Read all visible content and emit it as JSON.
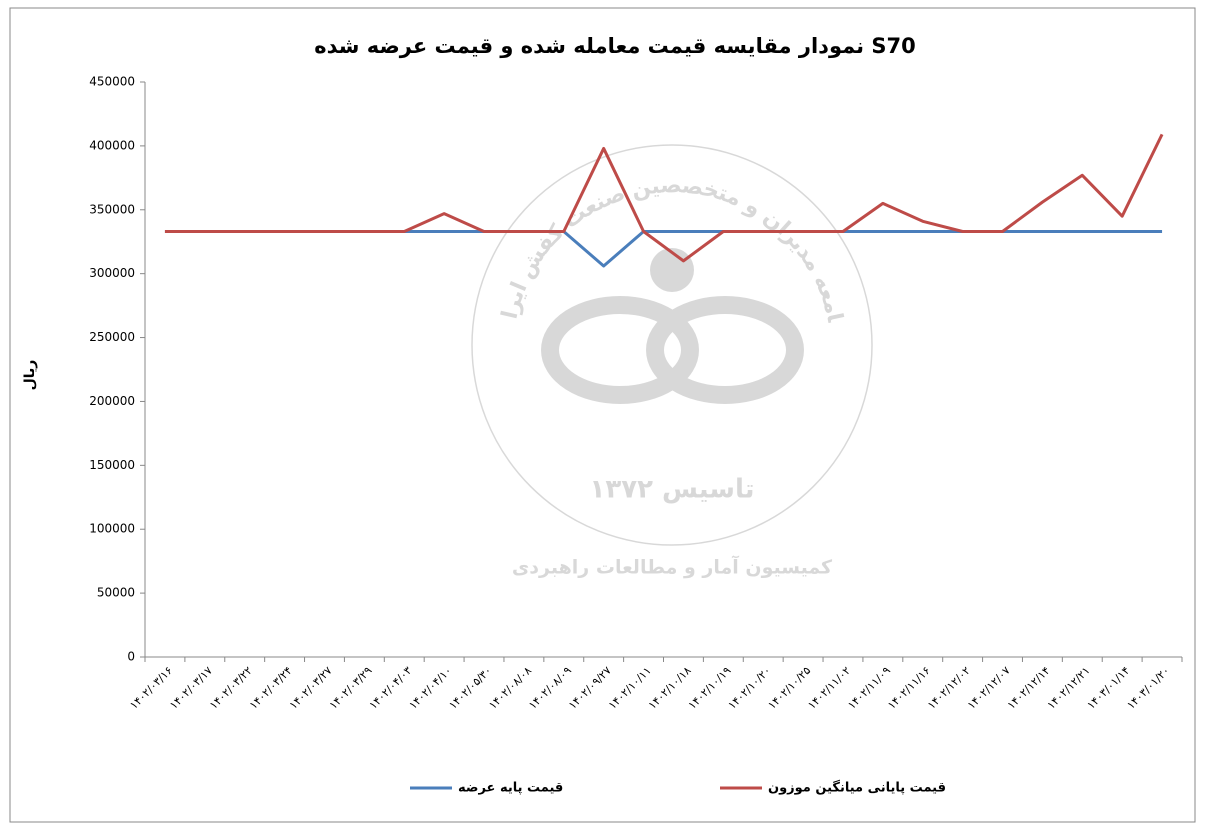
{
  "chart_data": {
    "type": "line",
    "title": "نمودار مقایسه قیمت معامله شده و قیمت عرضه شده S70",
    "y_label": "ریال",
    "categories": [
      "۱۴۰۲/۰۳/۱۶",
      "۱۴۰۲/۰۳/۱۷",
      "۱۴۰۲/۰۳/۲۲",
      "۱۴۰۲/۰۳/۲۴",
      "۱۴۰۲/۰۳/۲۷",
      "۱۴۰۲/۰۳/۲۹",
      "۱۴۰۲/۰۴/۰۳",
      "۱۴۰۲/۰۴/۱۰",
      "۱۴۰۲/۰۵/۳۰",
      "۱۴۰۲/۰۸/۰۸",
      "۱۴۰۲/۰۸/۰۹",
      "۱۴۰۲/۰۹/۲۷",
      "۱۴۰۲/۱۰/۱۱",
      "۱۴۰۲/۱۰/۱۸",
      "۱۴۰۲/۱۰/۱۹",
      "۱۴۰۲/۱۰/۲۰",
      "۱۴۰۲/۱۰/۲۵",
      "۱۴۰۲/۱۱/۰۲",
      "۱۴۰۲/۱۱/۰۹",
      "۱۴۰۲/۱۱/۱۶",
      "۱۴۰۲/۱۲/۰۲",
      "۱۴۰۲/۱۲/۰۷",
      "۱۴۰۲/۱۲/۱۴",
      "۱۴۰۲/۱۲/۲۱",
      "۱۴۰۳/۰۱/۱۴",
      "۱۴۰۳/۰۱/۲۰"
    ],
    "series": [
      {
        "name": "قیمت پایه عرضه",
        "color": "#4a7ebb",
        "values": [
          333000,
          333000,
          333000,
          333000,
          333000,
          333000,
          333000,
          333000,
          333000,
          333000,
          333000,
          306000,
          333000,
          333000,
          333000,
          333000,
          333000,
          333000,
          333000,
          333000,
          333000,
          333000,
          333000,
          333000,
          333000,
          333000
        ]
      },
      {
        "name": "قیمت پایانی میانگین موزون",
        "color": "#be4b48",
        "values": [
          333000,
          333000,
          333000,
          333000,
          333000,
          333000,
          333000,
          347000,
          333000,
          333000,
          333000,
          398000,
          333000,
          310000,
          333000,
          333000,
          333000,
          333000,
          355000,
          341000,
          333000,
          333000,
          356000,
          377000,
          345000,
          409000
        ]
      }
    ],
    "ylim": [
      0,
      450000
    ],
    "yticks": [
      0,
      50000,
      100000,
      150000,
      200000,
      250000,
      300000,
      350000,
      400000,
      450000
    ],
    "legend": "bottom",
    "watermark": {
      "top": "جامعه مدیران و متخصصین صنعت کفش ایران",
      "middle": "تاسیس ۱۳۷۲",
      "bottom": "کمیسیون آمار و مطالعات راهبردی"
    }
  }
}
